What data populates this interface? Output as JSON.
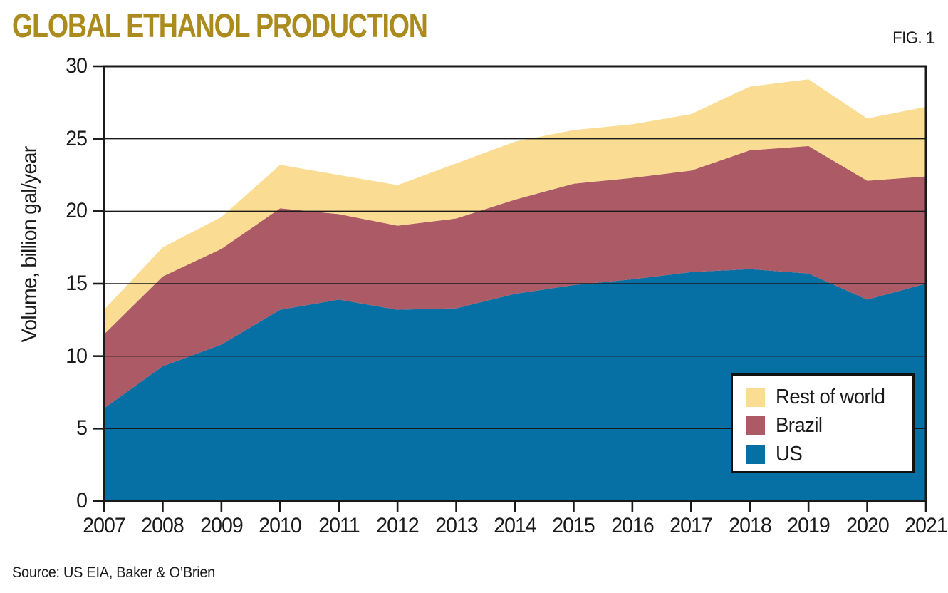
{
  "header": {
    "title": "GLOBAL ETHANOL PRODUCTION",
    "figure_label": "FIG. 1"
  },
  "footer": {
    "source": "Source: US EIA, Baker & O’Brien"
  },
  "colors": {
    "title_gold": "#AB8B1E",
    "axis_black": "#1a1a1a",
    "us_blue": "#0670A4",
    "brazil_maroon": "#AC5A66",
    "rest_of_world_cream": "#FBDC93",
    "legend_background": "#ffffff"
  },
  "chart_data": {
    "type": "area",
    "stacked": true,
    "title": "GLOBAL ETHANOL PRODUCTION",
    "xlabel": "",
    "ylabel": "Volume, billion gal/year",
    "ylim": [
      0,
      30
    ],
    "yticks": [
      0,
      5,
      10,
      15,
      20,
      25,
      30
    ],
    "grid": "horizontal",
    "legend_position": "inside-lower-right",
    "legend_order_top_to_bottom": [
      "Rest of world",
      "Brazil",
      "US"
    ],
    "categories": [
      "2007",
      "2008",
      "2009",
      "2010",
      "2011",
      "2012",
      "2013",
      "2014",
      "2015",
      "2016",
      "2017",
      "2018",
      "2019",
      "2020",
      "2021"
    ],
    "series": [
      {
        "name": "US",
        "color": "#0670A4",
        "values": [
          6.4,
          9.3,
          10.8,
          13.2,
          13.9,
          13.2,
          13.3,
          14.3,
          14.9,
          15.3,
          15.8,
          16.0,
          15.7,
          13.9,
          15.0
        ]
      },
      {
        "name": "Brazil",
        "color": "#AC5A66",
        "values": [
          5.1,
          6.2,
          6.6,
          7.0,
          5.9,
          5.8,
          6.2,
          6.5,
          7.0,
          7.0,
          7.0,
          8.2,
          8.8,
          8.2,
          7.4
        ]
      },
      {
        "name": "Rest of world",
        "color": "#FBDC93",
        "values": [
          1.7,
          2.0,
          2.2,
          3.0,
          2.7,
          2.8,
          3.8,
          4.0,
          3.7,
          3.7,
          3.9,
          4.4,
          4.6,
          4.3,
          4.8
        ]
      }
    ],
    "stacked_totals": [
      13.2,
      17.5,
      19.6,
      23.2,
      22.5,
      21.8,
      23.3,
      24.8,
      25.6,
      26.0,
      26.7,
      28.6,
      29.1,
      26.4,
      27.2
    ]
  }
}
